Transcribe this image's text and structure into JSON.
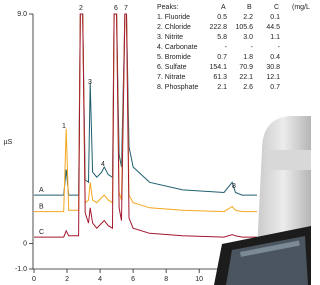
{
  "chart_data": {
    "type": "line",
    "y_label": "µS",
    "x": [
      0,
      1.8,
      1.95,
      2.1,
      2.7,
      2.8,
      2.95,
      3.1,
      3.3,
      3.4,
      3.55,
      3.8,
      4.1,
      4.25,
      4.5,
      4.75,
      4.85,
      5.0,
      5.15,
      5.3,
      5.5,
      5.6,
      5.75,
      6.0,
      7.0,
      9.0,
      11.5,
      12.0,
      12.2,
      12.6,
      13.5
    ],
    "series": [
      {
        "name": "A",
        "color": "#1f5f6e",
        "values": [
          1.9,
          1.9,
          2.9,
          1.9,
          1.9,
          9.0,
          9.0,
          2.5,
          2.4,
          6.3,
          2.8,
          2.6,
          2.8,
          3.0,
          2.7,
          2.6,
          9.0,
          9.0,
          3.5,
          3.0,
          9.0,
          9.0,
          3.8,
          3.0,
          2.4,
          2.1,
          2.0,
          2.4,
          2.0,
          1.9,
          1.9
        ]
      },
      {
        "name": "B",
        "color": "#f4a71f",
        "values": [
          1.25,
          1.25,
          4.5,
          1.3,
          1.3,
          9.0,
          9.0,
          1.6,
          1.7,
          2.4,
          1.7,
          1.6,
          1.8,
          1.9,
          1.7,
          1.6,
          9.0,
          9.0,
          2.0,
          1.7,
          9.0,
          9.0,
          1.9,
          1.6,
          1.4,
          1.3,
          1.25,
          1.45,
          1.3,
          1.25,
          1.25
        ]
      },
      {
        "name": "C",
        "color": "#a3172f",
        "values": [
          0.25,
          0.25,
          0.5,
          0.3,
          0.3,
          9.0,
          9.0,
          1.2,
          0.8,
          1.4,
          0.8,
          0.6,
          0.8,
          0.9,
          0.7,
          0.6,
          9.0,
          9.0,
          1.4,
          0.9,
          9.0,
          9.0,
          1.0,
          0.6,
          0.4,
          0.3,
          0.25,
          0.35,
          0.3,
          0.25,
          0.25
        ]
      }
    ],
    "xlim": [
      0,
      13.5
    ],
    "xticks": [
      0,
      2,
      4,
      6,
      8,
      10
    ],
    "ylim": [
      -1,
      9
    ],
    "yticks": [
      {
        "value": 9,
        "label": "9.0"
      },
      0,
      {
        "value": -1,
        "label": "-1.0"
      }
    ],
    "peak_labels": [
      "1",
      "2",
      "3",
      "4",
      "6",
      "7",
      "8"
    ],
    "table": {
      "header": [
        "Peaks:",
        "A",
        "B",
        "C",
        "(mg/L"
      ],
      "rows": [
        [
          "1. Fluoride",
          "0.5",
          "2.2",
          "0.1"
        ],
        [
          "2. Chloride",
          "222.8",
          "105.6",
          "44.5"
        ],
        [
          "3. Nitrite",
          "5.8",
          "3.0",
          "1.1"
        ],
        [
          "4. Carbonate",
          "-",
          "-",
          "-"
        ],
        [
          "5. Bromide",
          "0.7",
          "1.8",
          "0.4"
        ],
        [
          "6. Sulfate",
          "154.1",
          "70.9",
          "30.8"
        ],
        [
          "7. Nitrate",
          "61.3",
          "22.1",
          "12.1"
        ],
        [
          "8. Phosphate",
          "2.1",
          "2.6",
          "0.7"
        ]
      ]
    }
  }
}
